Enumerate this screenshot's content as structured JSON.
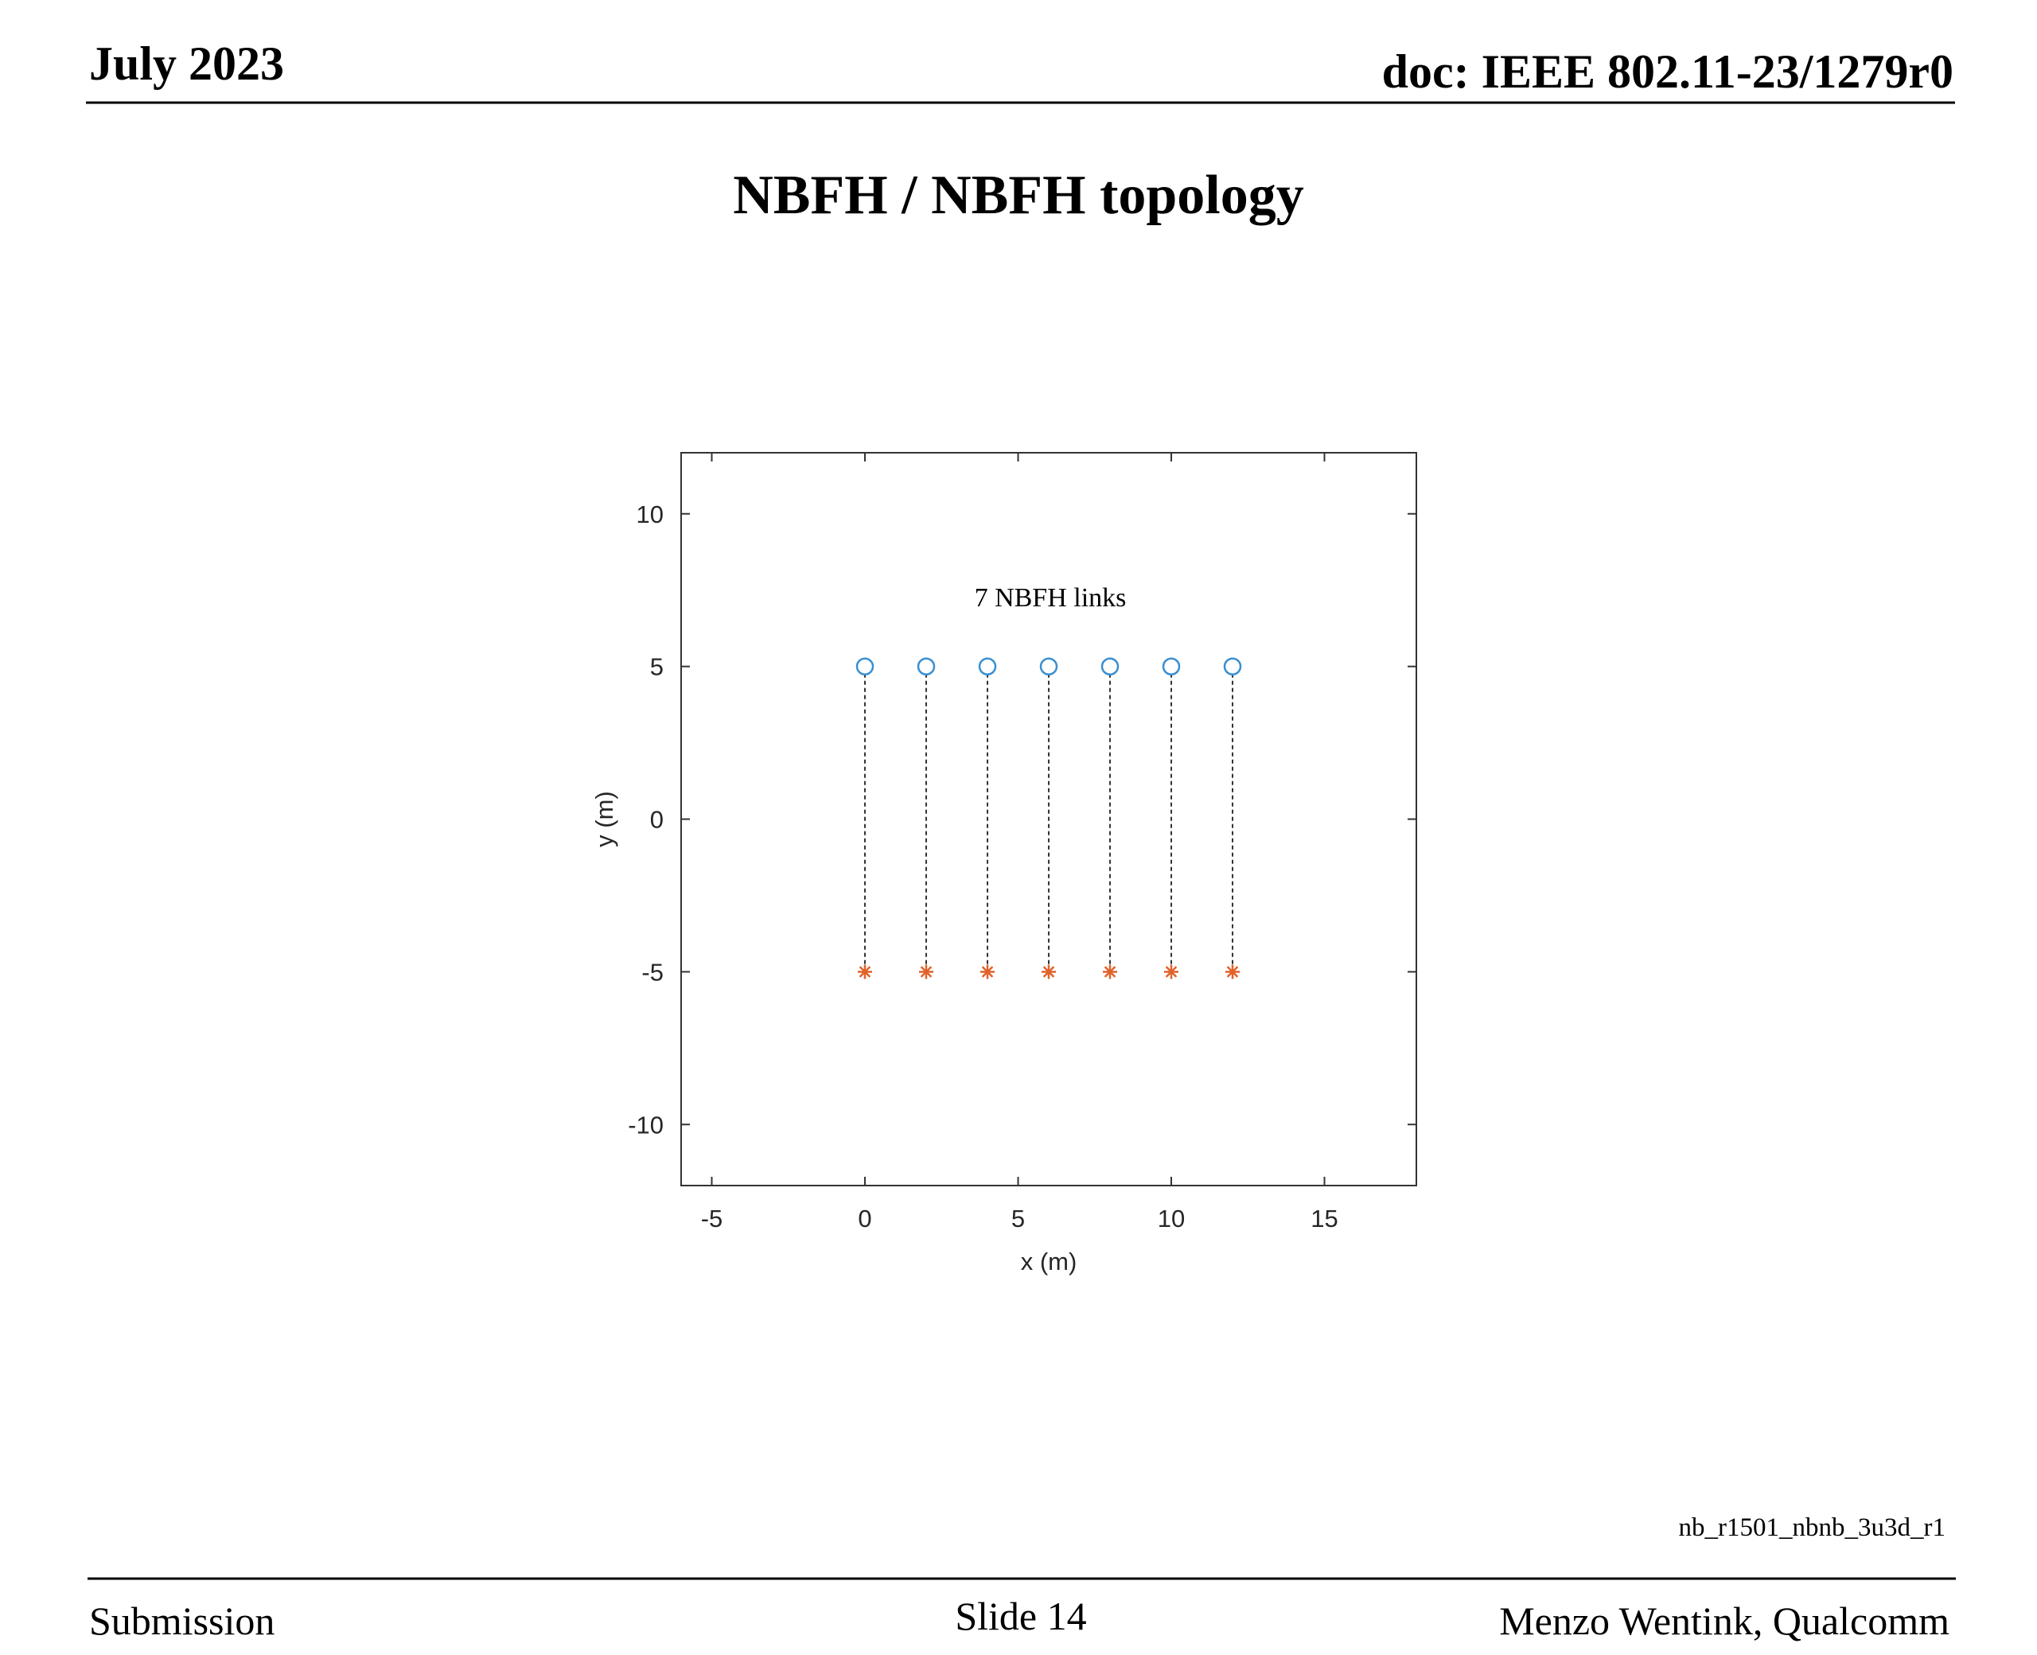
{
  "header": {
    "date": "July 2023",
    "doc": "doc: IEEE 802.11-23/1279r0"
  },
  "title": "NBFH / NBFH topology",
  "chart_data": {
    "type": "scatter",
    "xlabel": "x (m)",
    "ylabel": "y (m)",
    "annotation": "7 NBFH links",
    "x": [
      0,
      2,
      4,
      6,
      8,
      10,
      12
    ],
    "series": [
      {
        "color": "#3a8fd0",
        "marker": "circle",
        "values": [
          5,
          5,
          5,
          5,
          5,
          5,
          5
        ]
      },
      {
        "color": "#e0622a",
        "marker": "asterisk",
        "values": [
          -5,
          -5,
          -5,
          -5,
          -5,
          -5,
          -5
        ]
      }
    ],
    "links": true,
    "xlim": [
      -6,
      18
    ],
    "xticks": [
      -5,
      0,
      5,
      10,
      15
    ],
    "ylim": [
      -12,
      12
    ],
    "yticks": [
      -10,
      -5,
      0,
      5,
      10
    ]
  },
  "figure_id": "nb_r1501_nbnb_3u3d_r1",
  "footer": {
    "left": "Submission",
    "center": "Slide 14",
    "right": "Menzo Wentink, Qualcomm"
  }
}
